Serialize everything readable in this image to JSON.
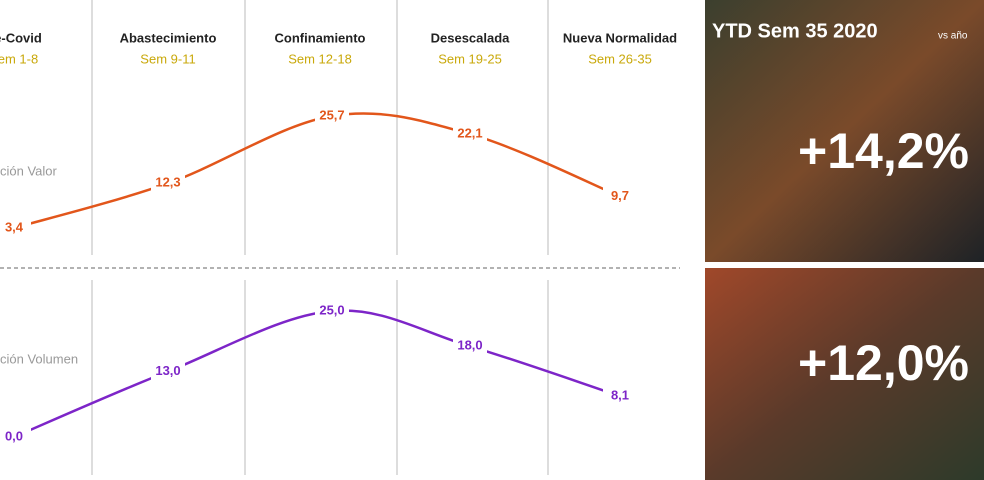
{
  "periods": {
    "names": [
      "e-Covid",
      "Abastecimiento",
      "Confinamiento",
      "Desescalada",
      "Nueva Normalidad"
    ],
    "weeks": [
      "em 1-8",
      "Sem 9-11",
      "Sem 12-18",
      "Sem 19-25",
      "Sem 26-35"
    ]
  },
  "chart_data": [
    {
      "type": "line",
      "label": "ción Valor",
      "color": "#e2561b",
      "values": [
        3.4,
        12.3,
        25.7,
        22.1,
        9.7
      ],
      "value_labels": [
        "3,4",
        "12,3",
        "25,7",
        "22,1",
        "9,7"
      ]
    },
    {
      "type": "line",
      "label": "ción Volumen",
      "color": "#7d25c8",
      "values": [
        0.0,
        13.0,
        25.0,
        18.0,
        8.1
      ],
      "value_labels": [
        "0,0",
        "13,0",
        "25,0",
        "18,0",
        "8,1"
      ]
    }
  ],
  "ytd": {
    "title": "YTD Sem 35 2020",
    "subtitle": "vs año",
    "values": [
      "+14,2%",
      "+12,0%"
    ]
  }
}
